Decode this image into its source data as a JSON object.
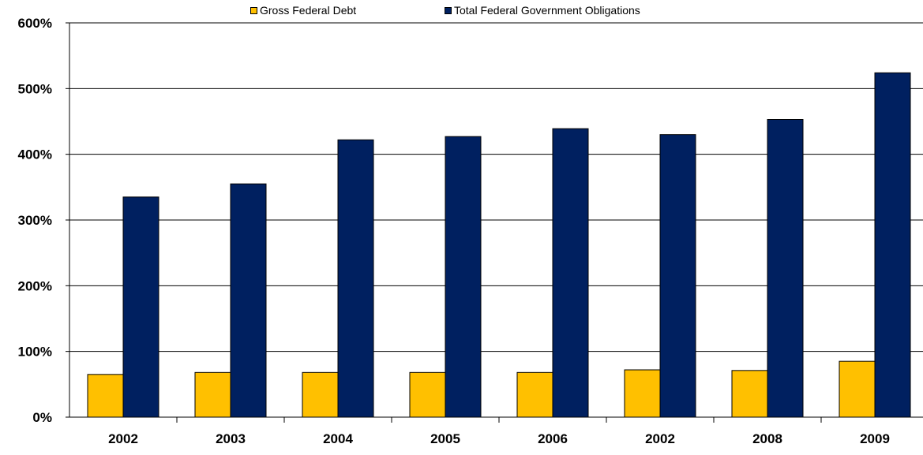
{
  "chart_data": {
    "type": "bar",
    "categories": [
      "2002",
      "2003",
      "2004",
      "2005",
      "2006",
      "2002",
      "2008",
      "2009"
    ],
    "series": [
      {
        "name": "Gross Federal Debt",
        "color": "#FFC000",
        "values": [
          65,
          68,
          68,
          68,
          68,
          72,
          71,
          85
        ]
      },
      {
        "name": "Total Federal Government Obligations",
        "color": "#002060",
        "values": [
          335,
          355,
          422,
          427,
          439,
          430,
          453,
          524
        ]
      }
    ],
    "title": "",
    "xlabel": "",
    "ylabel": "",
    "ylim": [
      0,
      600
    ],
    "yticks": [
      "0%",
      "100%",
      "200%",
      "300%",
      "400%",
      "500%",
      "600%"
    ],
    "grid": true,
    "legend": "top"
  }
}
